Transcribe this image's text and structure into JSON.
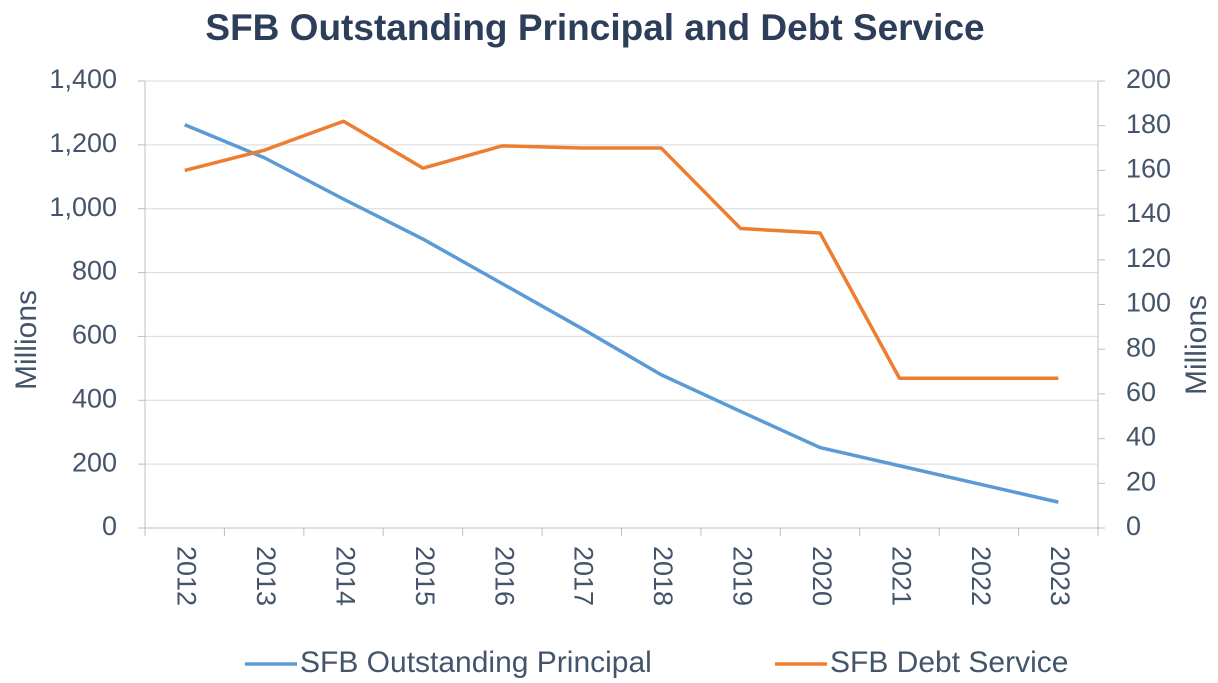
{
  "chart_data": {
    "type": "line",
    "title": "SFB Outstanding Principal and Debt Service",
    "y_label": "Millions",
    "y2_label": "Millions",
    "categories": [
      "2012",
      "2013",
      "2014",
      "2015",
      "2016",
      "2017",
      "2018",
      "2019",
      "2020",
      "2021",
      "2022",
      "2023"
    ],
    "series": [
      {
        "name": "SFB Outstanding Principal",
        "color": "#5b9bd5",
        "values": [
          1263,
          1160,
          1030,
          905,
          765,
          625,
          480,
          365,
          252,
          195,
          138,
          81
        ]
      },
      {
        "name": "SFB Debt Service",
        "color": "#ed7d31",
        "axis": "y2",
        "values": [
          160,
          169,
          182,
          161,
          171,
          170,
          170,
          134,
          132,
          67,
          67,
          67
        ]
      }
    ],
    "ylim": [
      0,
      1400
    ],
    "yticks": [
      0,
      200,
      400,
      600,
      800,
      {
        "value": 1000,
        "label": "1,000"
      },
      {
        "value": 1200,
        "label": "1,200"
      },
      {
        "value": 1400,
        "label": "1,400"
      }
    ],
    "y2lim": [
      0,
      200
    ],
    "y2ticks": [
      0,
      20,
      40,
      60,
      80,
      100,
      120,
      140,
      160,
      180,
      200
    ],
    "grid": true,
    "legend": "bottom"
  }
}
